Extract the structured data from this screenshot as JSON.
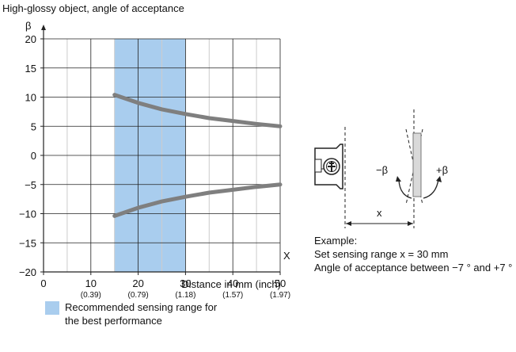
{
  "chart_data": {
    "type": "line",
    "title": "High-glossy object, angle of acceptance",
    "ylabel": "β",
    "xlabel": "Distance in mm (inch)",
    "x_axis_symbol": "X",
    "xlim": [
      0,
      50
    ],
    "ylim": [
      -20,
      20
    ],
    "grid": true,
    "x_ticks": [
      {
        "value": 0,
        "label": "0",
        "sublabel": ""
      },
      {
        "value": 10,
        "label": "10",
        "sublabel": "(0.39)"
      },
      {
        "value": 20,
        "label": "20",
        "sublabel": "(0.79)"
      },
      {
        "value": 30,
        "label": "30",
        "sublabel": "(1.18)"
      },
      {
        "value": 40,
        "label": "40",
        "sublabel": "(1.57)"
      },
      {
        "value": 50,
        "label": "50",
        "sublabel": "(1.97)"
      }
    ],
    "y_ticks": [
      {
        "value": 20,
        "label": "20"
      },
      {
        "value": 15,
        "label": "15"
      },
      {
        "value": 10,
        "label": "10"
      },
      {
        "value": 5,
        "label": "5"
      },
      {
        "value": 0,
        "label": "0"
      },
      {
        "value": -5,
        "label": "−5"
      },
      {
        "value": -10,
        "label": "−10"
      },
      {
        "value": -15,
        "label": "−15"
      },
      {
        "value": -20,
        "label": "−20"
      }
    ],
    "highlight_band": {
      "x_from": 15,
      "x_to": 30,
      "color": "#a9cdee"
    },
    "series": [
      {
        "color": "#7f7f7f",
        "x": [
          15,
          20,
          25,
          30,
          35,
          40,
          45,
          50
        ],
        "y": [
          10.4,
          9.0,
          7.9,
          7.1,
          6.4,
          5.9,
          5.4,
          5.0
        ]
      },
      {
        "color": "#7f7f7f",
        "x": [
          15,
          20,
          25,
          30,
          35,
          40,
          45,
          50
        ],
        "y": [
          -10.4,
          -9.0,
          -7.9,
          -7.1,
          -6.4,
          -5.9,
          -5.4,
          -5.0
        ]
      }
    ],
    "legend": {
      "line1": "Recommended sensing range for",
      "line2": "the best performance",
      "color": "#a9cdee"
    }
  },
  "diagram": {
    "minus_beta": "−β",
    "plus_beta": "+β",
    "distance_label": "x",
    "example_title": "Example:",
    "example_line1": "Set sensing range x = 30 mm",
    "example_line2": "Angle of acceptance between −7 ° and +7 °"
  },
  "colors": {
    "axis": "#222222",
    "grid": "#cccccc",
    "curve": "#7f7f7f",
    "band": "#a9cdee"
  }
}
